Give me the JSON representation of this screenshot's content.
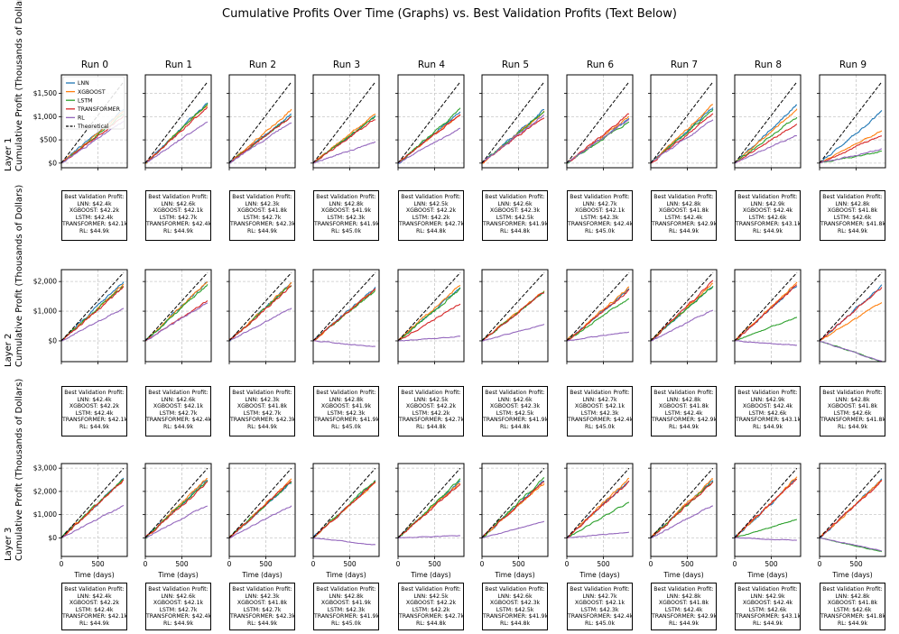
{
  "title": "Cumulative Profits Over Time (Graphs) vs. Best Validation Profits (Text Below)",
  "run_titles": [
    "Run 0",
    "Run 1",
    "Run 2",
    "Run 3",
    "Run 4",
    "Run 5",
    "Run 6",
    "Run 7",
    "Run 8",
    "Run 9"
  ],
  "row_labels": [
    {
      "layer": "Layer 1",
      "ylabel": "Cumulative Profit (Thousands of Dollars)"
    },
    {
      "layer": "Layer 2",
      "ylabel": "Cumulative Profit (Thousands of Dollars)"
    },
    {
      "layer": "Layer 3",
      "ylabel": "Cumulative Profit (Thousands of Dollars)"
    }
  ],
  "legend": [
    "LNN",
    "XGBOOST",
    "LSTM",
    "TRANSFORMER",
    "RL",
    "Theoretical"
  ],
  "colors": {
    "LNN": "#1f77b4",
    "XGBOOST": "#ff7f0e",
    "LSTM": "#2ca02c",
    "TRANSFORMER": "#d62728",
    "RL": "#9467bd",
    "Theoretical": "#000000",
    "grid": "#c8c8c8"
  },
  "xlabel": "Time (days)",
  "validation_heading": "Best Validation Profit:",
  "chart_data": [
    {
      "type": "line",
      "layer": "Layer 1",
      "xlim": [
        0,
        900
      ],
      "ylim": [
        -100,
        1900
      ],
      "yticks": [
        0,
        500,
        1000,
        1500
      ],
      "ytick_labels": [
        "$0",
        "$500",
        "$1,000",
        "$1,500"
      ],
      "xticks": [
        0,
        500
      ],
      "xtick_labels": [
        "0",
        "500"
      ],
      "theoretical_end": 1750,
      "runs_final": [
        {
          "LNN": 1150,
          "XGBOOST": 1100,
          "LSTM": 1050,
          "TRANSFORMER": 1000,
          "RL": 900
        },
        {
          "LNN": 1300,
          "XGBOOST": 1250,
          "LSTM": 1280,
          "TRANSFORMER": 1200,
          "RL": 900
        },
        {
          "LNN": 1050,
          "XGBOOST": 1150,
          "LSTM": 1000,
          "TRANSFORMER": 1000,
          "RL": 900
        },
        {
          "LNN": 1000,
          "XGBOOST": 1050,
          "LSTM": 1000,
          "TRANSFORMER": 950,
          "RL": 450
        },
        {
          "LNN": 1100,
          "XGBOOST": 1050,
          "LSTM": 1150,
          "TRANSFORMER": 1050,
          "RL": 750
        },
        {
          "LNN": 1150,
          "XGBOOST": 1100,
          "LSTM": 1100,
          "TRANSFORMER": 1000,
          "RL": 1050
        },
        {
          "LNN": 950,
          "XGBOOST": 1000,
          "LSTM": 900,
          "TRANSFORMER": 1050,
          "RL": 950
        },
        {
          "LNN": 1200,
          "XGBOOST": 1250,
          "LSTM": 1150,
          "TRANSFORMER": 1050,
          "RL": 950
        },
        {
          "LNN": 1250,
          "XGBOOST": 1150,
          "LSTM": 1000,
          "TRANSFORMER": 850,
          "RL": 600
        },
        {
          "LNN": 1100,
          "XGBOOST": 700,
          "LSTM": 250,
          "TRANSFORMER": 600,
          "RL": 300
        }
      ]
    },
    {
      "type": "line",
      "layer": "Layer 2",
      "xlim": [
        0,
        900
      ],
      "ylim": [
        -700,
        2400
      ],
      "yticks": [
        0,
        1000,
        2000
      ],
      "ytick_labels": [
        "$0",
        "$1,000",
        "$2,000"
      ],
      "xticks": [
        0,
        500
      ],
      "xtick_labels": [
        "0",
        "500"
      ],
      "theoretical_end": 2300,
      "runs_final": [
        {
          "LNN": 2000,
          "XGBOOST": 1900,
          "LSTM": 1850,
          "TRANSFORMER": 1800,
          "RL": 1100
        },
        {
          "LNN": 2000,
          "XGBOOST": 2000,
          "LSTM": 1900,
          "TRANSFORMER": 1350,
          "RL": 1300
        },
        {
          "LNN": 1950,
          "XGBOOST": 1950,
          "LSTM": 1900,
          "TRANSFORMER": 1850,
          "RL": 1100
        },
        {
          "LNN": 1800,
          "XGBOOST": 1750,
          "LSTM": 1700,
          "TRANSFORMER": 1750,
          "RL": -200
        },
        {
          "LNN": 1800,
          "XGBOOST": 1900,
          "LSTM": 1750,
          "TRANSFORMER": 1250,
          "RL": 150
        },
        {
          "LNN": 1650,
          "XGBOOST": 1700,
          "LSTM": 1650,
          "TRANSFORMER": 1650,
          "RL": 550
        },
        {
          "LNN": 1750,
          "XGBOOST": 1800,
          "LSTM": 1450,
          "TRANSFORMER": 1700,
          "RL": 300
        },
        {
          "LNN": 1850,
          "XGBOOST": 1950,
          "LSTM": 1850,
          "TRANSFORMER": 2000,
          "RL": 1050
        },
        {
          "LNN": 1900,
          "XGBOOST": 1950,
          "LSTM": 800,
          "TRANSFORMER": 1900,
          "RL": -150
        },
        {
          "LNN": 1850,
          "XGBOOST": 1300,
          "LSTM": -700,
          "TRANSFORMER": 1800,
          "RL": -700
        }
      ]
    },
    {
      "type": "line",
      "layer": "Layer 3",
      "xlim": [
        0,
        900
      ],
      "ylim": [
        -800,
        3200
      ],
      "yticks": [
        0,
        1000,
        2000,
        3000
      ],
      "ytick_labels": [
        "$0",
        "$1,000",
        "$2,000",
        "$3,000"
      ],
      "xticks": [
        0,
        500
      ],
      "xtick_labels": [
        "0",
        "500"
      ],
      "theoretical_end": 3000,
      "runs_final": [
        {
          "LNN": 2550,
          "XGBOOST": 2500,
          "LSTM": 2550,
          "TRANSFORMER": 2500,
          "RL": 1400
        },
        {
          "LNN": 2500,
          "XGBOOST": 2600,
          "LSTM": 2450,
          "TRANSFORMER": 2400,
          "RL": 1400
        },
        {
          "LNN": 2400,
          "XGBOOST": 2500,
          "LSTM": 2450,
          "TRANSFORMER": 2450,
          "RL": 1400
        },
        {
          "LNN": 2450,
          "XGBOOST": 2400,
          "LSTM": 2500,
          "TRANSFORMER": 2400,
          "RL": -300
        },
        {
          "LNN": 2450,
          "XGBOOST": 2400,
          "LSTM": 2500,
          "TRANSFORMER": 2350,
          "RL": 100
        },
        {
          "LNN": 2450,
          "XGBOOST": 2350,
          "LSTM": 2600,
          "TRANSFORMER": 2450,
          "RL": 700
        },
        {
          "LNN": 2450,
          "XGBOOST": 2550,
          "LSTM": 1550,
          "TRANSFORMER": 2400,
          "RL": 250
        },
        {
          "LNN": 2500,
          "XGBOOST": 2550,
          "LSTM": 2450,
          "TRANSFORMER": 2400,
          "RL": 1400
        },
        {
          "LNN": 2550,
          "XGBOOST": 2600,
          "LSTM": 800,
          "TRANSFORMER": 2550,
          "RL": -100
        },
        {
          "LNN": 2500,
          "XGBOOST": 2500,
          "LSTM": -600,
          "TRANSFORMER": 2450,
          "RL": -550
        }
      ]
    }
  ],
  "validation": [
    [
      [
        "LNN: $42.4k",
        "XGBOOST: $42.2k",
        "LSTM: $42.4k",
        "TRANSFORMER: $42.1k",
        "RL: $44.9k"
      ],
      [
        "LNN: $42.6k",
        "XGBOOST: $42.1k",
        "LSTM: $42.7k",
        "TRANSFORMER: $42.4k",
        "RL: $44.9k"
      ],
      [
        "LNN: $42.3k",
        "XGBOOST: $41.8k",
        "LSTM: $42.7k",
        "TRANSFORMER: $42.3k",
        "RL: $44.9k"
      ],
      [
        "LNN: $42.8k",
        "XGBOOST: $41.9k",
        "LSTM: $42.3k",
        "TRANSFORMER: $41.9k",
        "RL: $45.0k"
      ],
      [
        "LNN: $42.5k",
        "XGBOOST: $42.2k",
        "LSTM: $42.2k",
        "TRANSFORMER: $42.7k",
        "RL: $44.8k"
      ],
      [
        "LNN: $42.6k",
        "XGBOOST: $42.3k",
        "LSTM: $42.5k",
        "TRANSFORMER: $41.9k",
        "RL: $44.8k"
      ],
      [
        "LNN: $42.7k",
        "XGBOOST: $42.1k",
        "LSTM: $42.3k",
        "TRANSFORMER: $42.4k",
        "RL: $45.0k"
      ],
      [
        "LNN: $42.8k",
        "XGBOOST: $41.8k",
        "LSTM: $42.4k",
        "TRANSFORMER: $42.9k",
        "RL: $44.9k"
      ],
      [
        "LNN: $42.9k",
        "XGBOOST: $42.4k",
        "LSTM: $42.6k",
        "TRANSFORMER: $43.1k",
        "RL: $44.9k"
      ],
      [
        "LNN: $42.8k",
        "XGBOOST: $41.8k",
        "LSTM: $42.6k",
        "TRANSFORMER: $41.8k",
        "RL: $44.9k"
      ]
    ],
    [
      [
        "LNN: $42.4k",
        "XGBOOST: $42.2k",
        "LSTM: $42.4k",
        "TRANSFORMER: $42.1k",
        "RL: $44.9k"
      ],
      [
        "LNN: $42.6k",
        "XGBOOST: $42.1k",
        "LSTM: $42.7k",
        "TRANSFORMER: $42.4k",
        "RL: $44.9k"
      ],
      [
        "LNN: $42.3k",
        "XGBOOST: $41.8k",
        "LSTM: $42.7k",
        "TRANSFORMER: $42.3k",
        "RL: $44.9k"
      ],
      [
        "LNN: $42.8k",
        "XGBOOST: $41.9k",
        "LSTM: $42.3k",
        "TRANSFORMER: $41.9k",
        "RL: $45.0k"
      ],
      [
        "LNN: $42.5k",
        "XGBOOST: $42.2k",
        "LSTM: $42.2k",
        "TRANSFORMER: $42.7k",
        "RL: $44.8k"
      ],
      [
        "LNN: $42.6k",
        "XGBOOST: $42.3k",
        "LSTM: $42.5k",
        "TRANSFORMER: $41.9k",
        "RL: $44.8k"
      ],
      [
        "LNN: $42.7k",
        "XGBOOST: $42.1k",
        "LSTM: $42.3k",
        "TRANSFORMER: $42.4k",
        "RL: $45.0k"
      ],
      [
        "LNN: $42.8k",
        "XGBOOST: $41.8k",
        "LSTM: $42.4k",
        "TRANSFORMER: $42.9k",
        "RL: $44.9k"
      ],
      [
        "LNN: $42.9k",
        "XGBOOST: $42.4k",
        "LSTM: $42.6k",
        "TRANSFORMER: $43.1k",
        "RL: $44.9k"
      ],
      [
        "LNN: $42.8k",
        "XGBOOST: $41.8k",
        "LSTM: $42.6k",
        "TRANSFORMER: $41.8k",
        "RL: $44.9k"
      ]
    ],
    [
      [
        "LNN: $42.4k",
        "XGBOOST: $42.2k",
        "LSTM: $42.4k",
        "TRANSFORMER: $42.1k",
        "RL: $44.9k"
      ],
      [
        "LNN: $42.6k",
        "XGBOOST: $42.1k",
        "LSTM: $42.7k",
        "TRANSFORMER: $42.4k",
        "RL: $44.9k"
      ],
      [
        "LNN: $42.3k",
        "XGBOOST: $41.8k",
        "LSTM: $42.7k",
        "TRANSFORMER: $42.3k",
        "RL: $44.9k"
      ],
      [
        "LNN: $42.8k",
        "XGBOOST: $41.9k",
        "LSTM: $42.3k",
        "TRANSFORMER: $41.9k",
        "RL: $45.0k"
      ],
      [
        "LNN: $42.5k",
        "XGBOOST: $42.2k",
        "LSTM: $42.2k",
        "TRANSFORMER: $42.7k",
        "RL: $44.8k"
      ],
      [
        "LNN: $42.6k",
        "XGBOOST: $42.3k",
        "LSTM: $42.5k",
        "TRANSFORMER: $41.9k",
        "RL: $44.8k"
      ],
      [
        "LNN: $42.7k",
        "XGBOOST: $42.1k",
        "LSTM: $42.3k",
        "TRANSFORMER: $42.4k",
        "RL: $45.0k"
      ],
      [
        "LNN: $42.8k",
        "XGBOOST: $41.8k",
        "LSTM: $42.4k",
        "TRANSFORMER: $42.9k",
        "RL: $44.9k"
      ],
      [
        "LNN: $42.9k",
        "XGBOOST: $42.4k",
        "LSTM: $42.6k",
        "TRANSFORMER: $43.1k",
        "RL: $44.9k"
      ],
      [
        "LNN: $42.8k",
        "XGBOOST: $41.8k",
        "LSTM: $42.6k",
        "TRANSFORMER: $41.8k",
        "RL: $44.9k"
      ]
    ]
  ]
}
